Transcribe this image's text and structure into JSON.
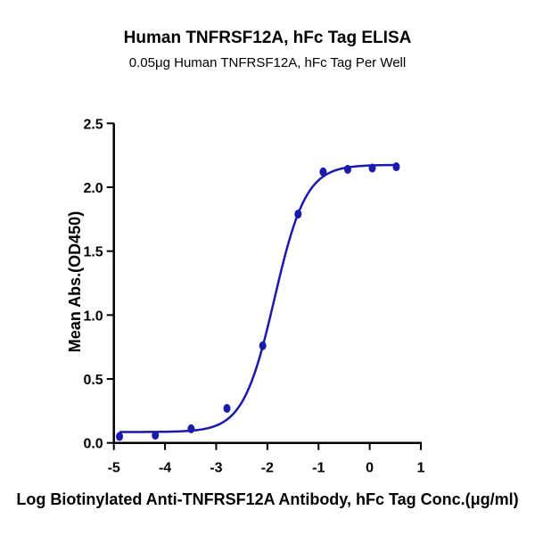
{
  "chart_data": {
    "type": "scatter",
    "title": "Human TNFRSF12A, hFc Tag ELISA",
    "subtitle": "0.05μg Human TNFRSF12A, hFc Tag Per Well",
    "xlabel": "Log Biotinylated Anti-TNFRSF12A Antibody, hFc Tag Conc.(μg/ml)",
    "ylabel": "Mean Abs.(OD450)",
    "xlim": [
      -5,
      1
    ],
    "ylim": [
      0,
      2.5
    ],
    "xticks": [
      "-5",
      "-4",
      "-3",
      "-2",
      "-1",
      "0",
      "1"
    ],
    "yticks": [
      "0.0",
      "0.5",
      "1.0",
      "1.5",
      "2.0",
      "2.5"
    ],
    "grid": false,
    "color": "#1a1aad",
    "points": {
      "x": [
        -4.89,
        -4.19,
        -3.49,
        -2.79,
        -2.09,
        -1.4,
        -0.91,
        -0.43,
        0.05,
        0.52
      ],
      "y": [
        0.05,
        0.06,
        0.11,
        0.27,
        0.76,
        1.79,
        2.12,
        2.14,
        2.15,
        2.16
      ]
    },
    "fit": {
      "model": "4PL",
      "bottom": 0.085,
      "top": 2.175,
      "logEC50": -1.86,
      "hill": 1.41
    }
  }
}
